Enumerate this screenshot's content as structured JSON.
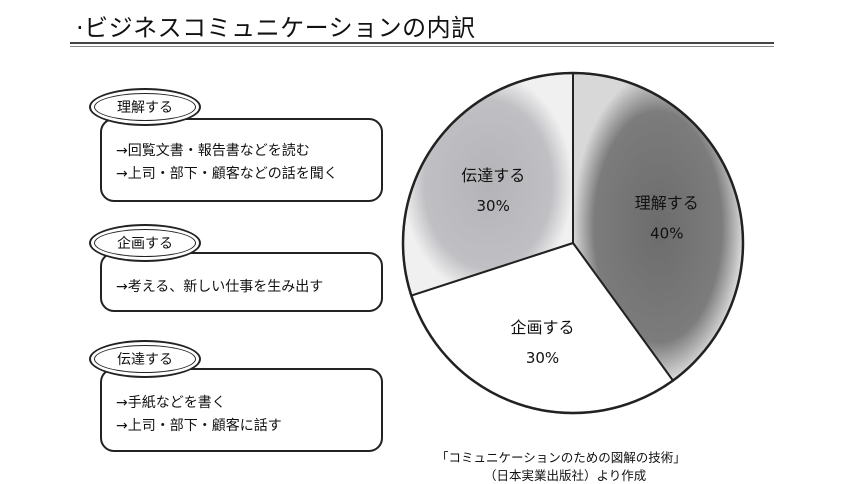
{
  "title": "·ビジネスコミュニケーションの内訳",
  "items": [
    {
      "tag": "理解する",
      "lines": [
        "→回覧文書・報告書などを読む",
        "→上司・部下・顧客などの話を聞く"
      ]
    },
    {
      "tag": "企画する",
      "lines": [
        "→考える、新しい仕事を生み出す"
      ]
    },
    {
      "tag": "伝達する",
      "lines": [
        "→手紙などを書く",
        "→上司・部下・顧客に話す"
      ]
    }
  ],
  "chart_data": {
    "type": "pie",
    "title": "",
    "slices": [
      {
        "label": "理解する",
        "value": 40,
        "value_label": "40%",
        "color": "#8a8a8a"
      },
      {
        "label": "企画する",
        "value": 30,
        "value_label": "30%",
        "color": "#ffffff"
      },
      {
        "label": "伝達する",
        "value": 30,
        "value_label": "30%",
        "color": "#c8c8cc"
      }
    ],
    "start": "12 o'clock",
    "direction": "clockwise",
    "legend": "none"
  },
  "source": {
    "line1": "「コミュニケーションのための図解の技術」",
    "line2": "（日本実業出版社）より作成"
  }
}
